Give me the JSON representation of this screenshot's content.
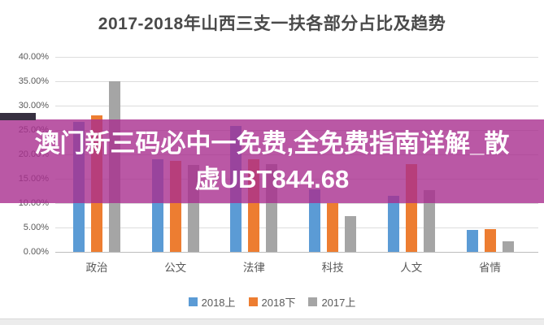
{
  "banner": {
    "text": "澳门新三码必中一免费,全免费指南详解_散虚UBT844.68",
    "lines": [
      "澳门新三码必中一免费,全免费指南详解_散",
      "虚UBT844.68"
    ],
    "bg_color": "#A92E8F",
    "text_color": "#FFFFFF"
  },
  "chart_data": {
    "type": "bar",
    "title": "2017-2018年山西三支一扶各部分占比及趋势",
    "categories": [
      "政治",
      "公文",
      "法律",
      "科技",
      "人文",
      "省情"
    ],
    "series": [
      {
        "name": "2018上",
        "color": "#5B9BD5",
        "values": [
          26.6,
          19.0,
          25.8,
          12.8,
          11.5,
          4.5
        ]
      },
      {
        "name": "2018下",
        "color": "#ED7D31",
        "values": [
          28.0,
          18.7,
          19.0,
          10.0,
          18.0,
          4.6
        ]
      },
      {
        "name": "2017上",
        "color": "#A5A5A5",
        "values": [
          35.0,
          17.8,
          18.0,
          7.3,
          12.7,
          2.2
        ]
      }
    ],
    "xlabel": "",
    "ylabel": "",
    "ylim": [
      0,
      40
    ],
    "y_ticks": [
      {
        "label": "40.00%",
        "value": 40
      },
      {
        "label": "35.00%",
        "value": 35
      },
      {
        "label": "30.00%",
        "value": 30
      },
      {
        "label": "25.00%",
        "value": 25
      },
      {
        "label": "20.00%",
        "value": 20
      },
      {
        "label": "15.00%",
        "value": 15
      },
      {
        "label": "10.00%",
        "value": 10
      },
      {
        "label": "5.00%",
        "value": 5
      },
      {
        "label": "0.00%",
        "value": 0
      }
    ],
    "grid": true,
    "legend_position": "bottom",
    "axis_text_color": "#595959",
    "title_color": "#4A4A4A"
  }
}
